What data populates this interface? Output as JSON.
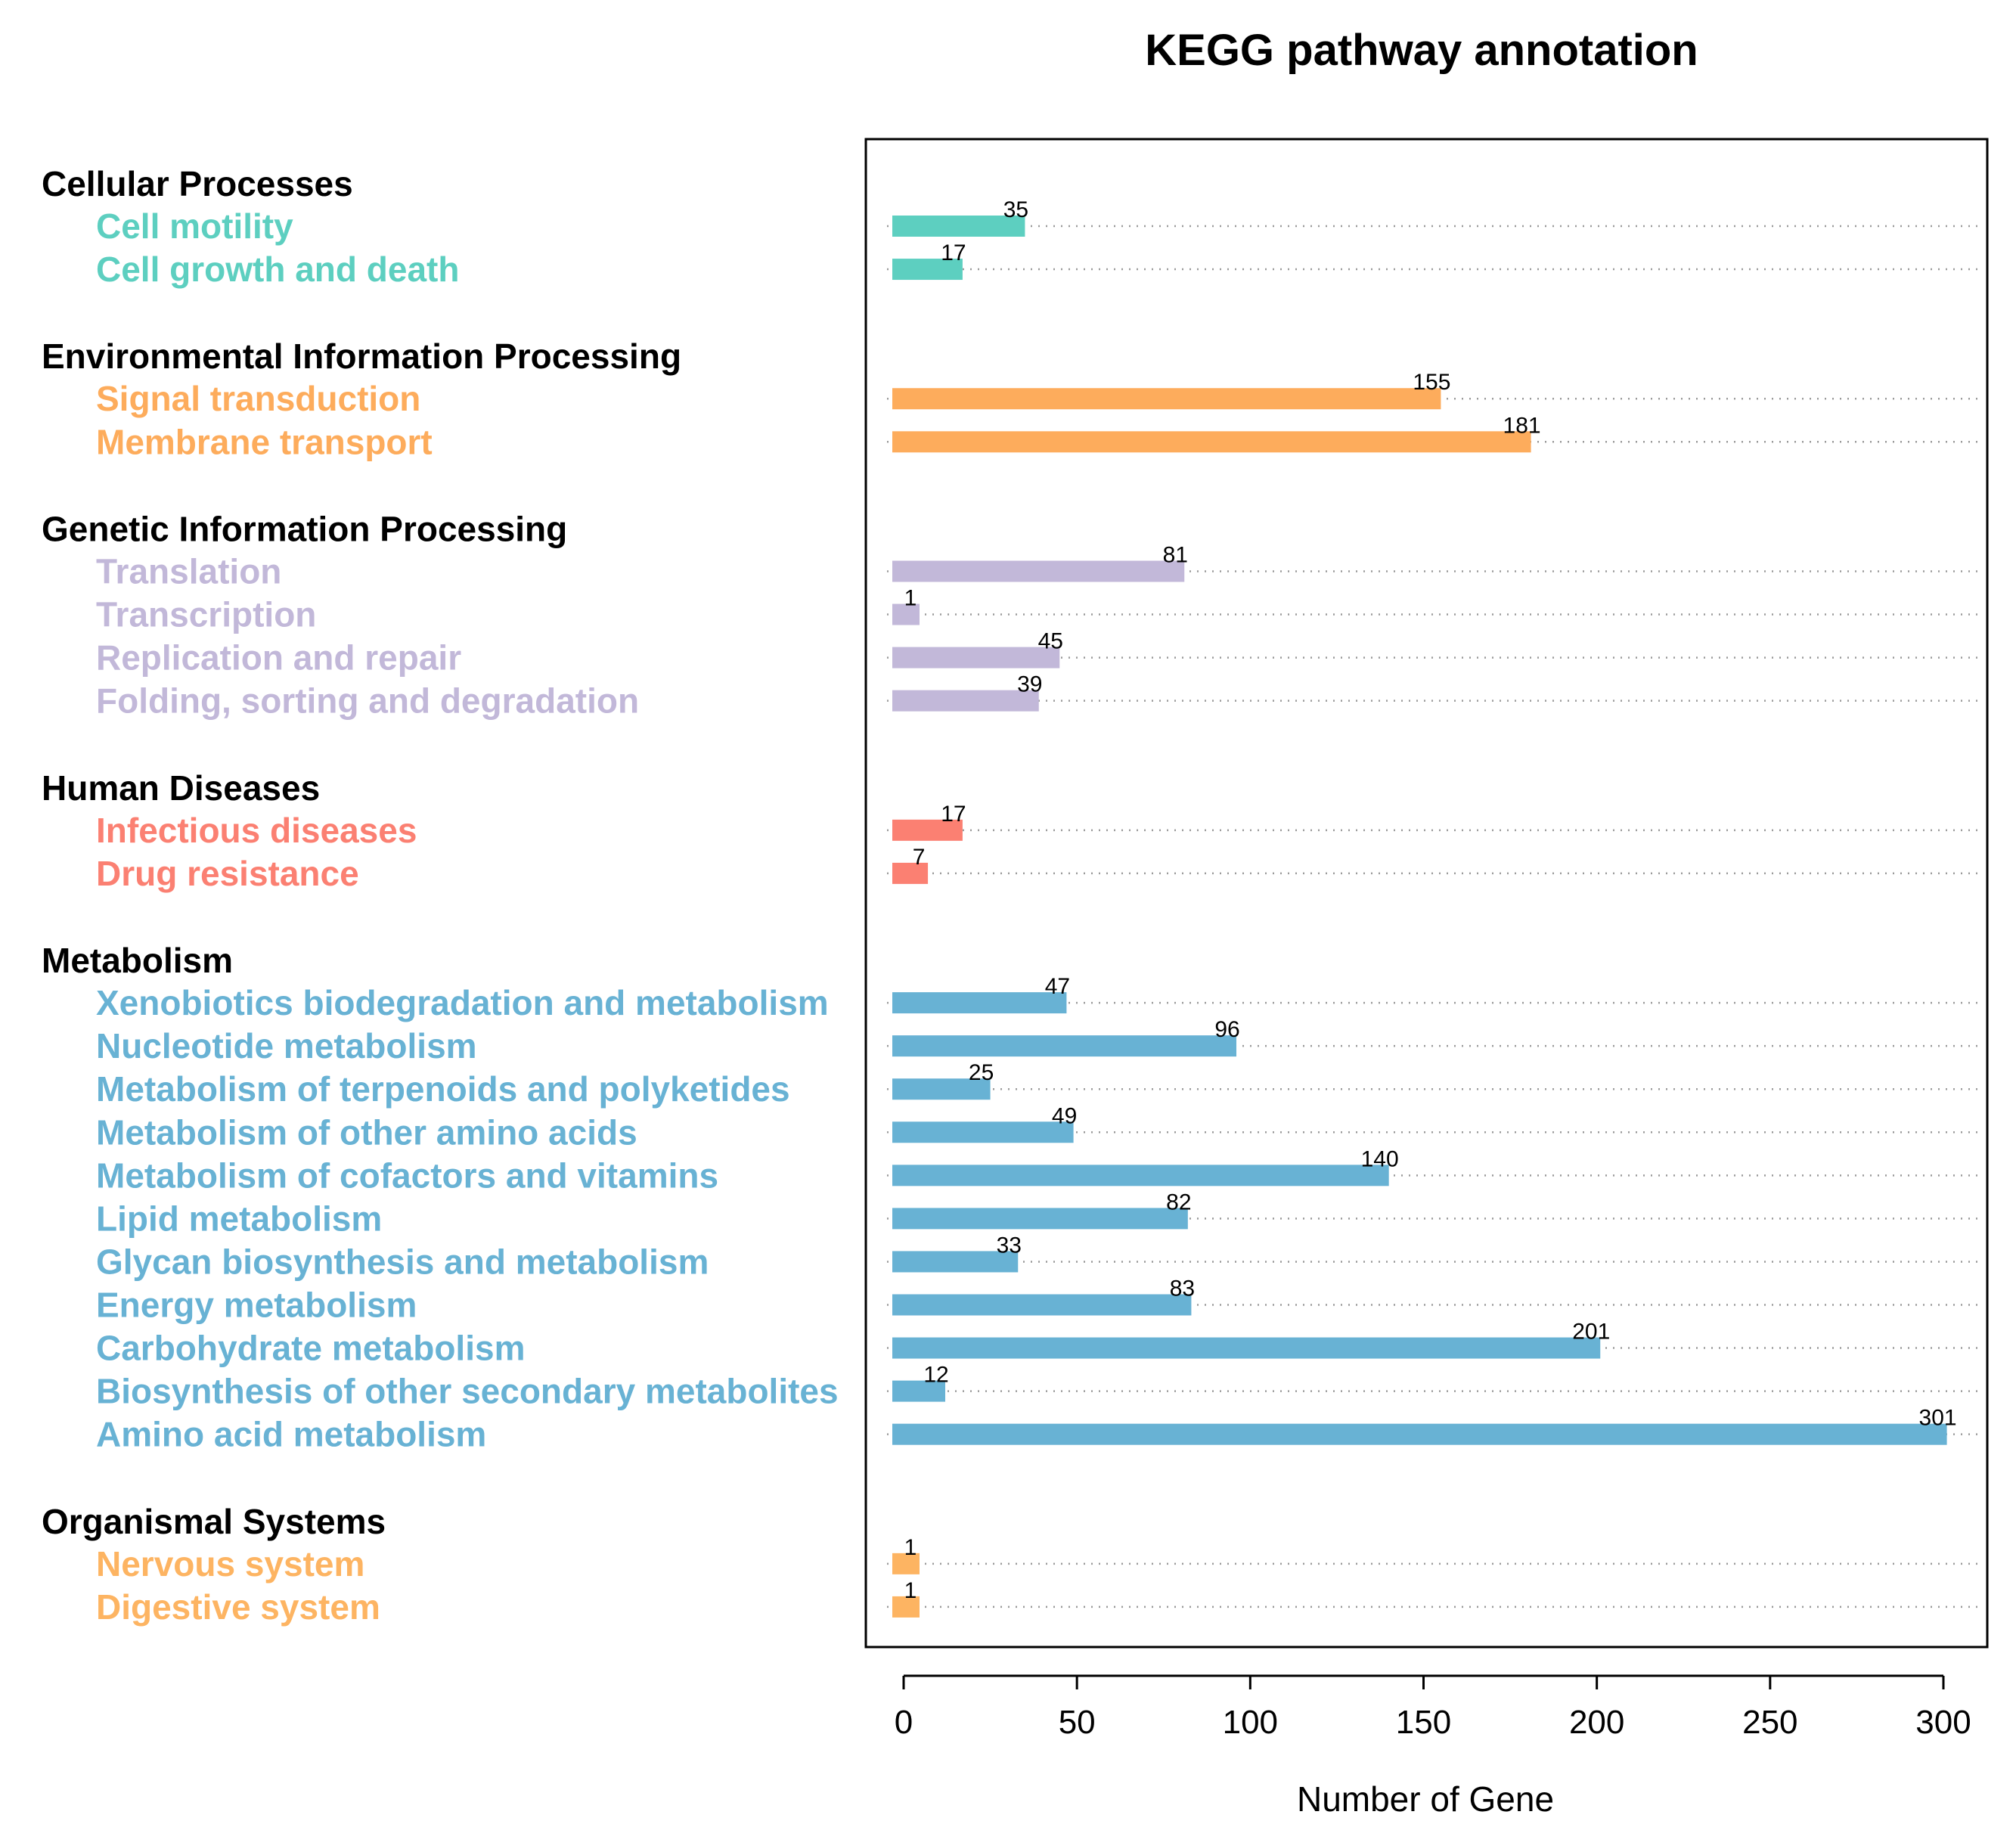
{
  "chart_data": {
    "type": "bar",
    "orientation": "horizontal",
    "title": "KEGG pathway annotation",
    "xlabel": "Number of Gene",
    "xlim": [
      0,
      310
    ],
    "xticks": [
      0,
      50,
      100,
      150,
      200,
      250,
      300
    ],
    "grid": "dotted horizontal guide per bar",
    "groups": [
      {
        "name": "Cellular Processes",
        "color": "#5dcfc0",
        "items": [
          {
            "label": "Cell motility",
            "value": 35
          },
          {
            "label": "Cell growth and death",
            "value": 17
          }
        ]
      },
      {
        "name": "Environmental Information Processing",
        "color": "#fdac5c",
        "items": [
          {
            "label": "Signal transduction",
            "value": 155
          },
          {
            "label": "Membrane transport",
            "value": 181
          }
        ]
      },
      {
        "name": "Genetic Information Processing",
        "color": "#c2b8d9",
        "items": [
          {
            "label": "Translation",
            "value": 81
          },
          {
            "label": "Transcription",
            "value": 1
          },
          {
            "label": "Replication and repair",
            "value": 45
          },
          {
            "label": "Folding, sorting and degradation",
            "value": 39
          }
        ]
      },
      {
        "name": "Human Diseases",
        "color": "#fb8072",
        "items": [
          {
            "label": "Infectious diseases",
            "value": 17
          },
          {
            "label": "Drug resistance",
            "value": 7
          }
        ]
      },
      {
        "name": "Metabolism",
        "color": "#68b2d4",
        "items": [
          {
            "label": "Xenobiotics biodegradation and metabolism",
            "value": 47
          },
          {
            "label": "Nucleotide metabolism",
            "value": 96
          },
          {
            "label": "Metabolism of terpenoids and polyketides",
            "value": 25
          },
          {
            "label": "Metabolism of other amino acids",
            "value": 49
          },
          {
            "label": "Metabolism of cofactors and vitamins",
            "value": 140
          },
          {
            "label": "Lipid metabolism",
            "value": 82
          },
          {
            "label": "Glycan biosynthesis and metabolism",
            "value": 33
          },
          {
            "label": "Energy metabolism",
            "value": 83
          },
          {
            "label": "Carbohydrate metabolism",
            "value": 201
          },
          {
            "label": "Biosynthesis of other secondary metabolites",
            "value": 12
          },
          {
            "label": "Amino acid metabolism",
            "value": 301
          }
        ]
      },
      {
        "name": "Organismal Systems",
        "color": "#fdb462",
        "items": [
          {
            "label": "Nervous system",
            "value": 1
          },
          {
            "label": "Digestive system",
            "value": 1
          }
        ]
      }
    ]
  }
}
